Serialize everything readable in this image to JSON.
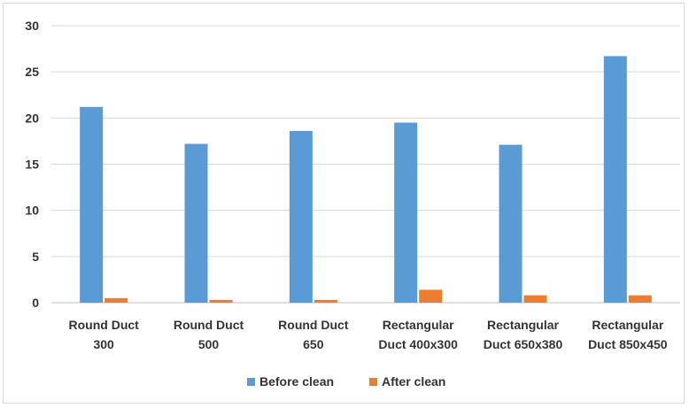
{
  "chart_data": {
    "type": "bar",
    "title": "",
    "xlabel": "",
    "ylabel": "",
    "ylim": [
      0,
      30
    ],
    "yticks": [
      0,
      5,
      10,
      15,
      20,
      25,
      30
    ],
    "categories": [
      [
        "Round Duct",
        "300"
      ],
      [
        "Round Duct",
        "500"
      ],
      [
        "Round Duct",
        "650"
      ],
      [
        "Rectangular",
        "Duct 400x300"
      ],
      [
        "Rectangular",
        "Duct 650x380"
      ],
      [
        "Rectangular",
        "Duct 850x450"
      ]
    ],
    "series": [
      {
        "name": "Before clean",
        "color": "#5b9bd5",
        "values": [
          21.2,
          17.2,
          18.6,
          19.5,
          17.1,
          26.7
        ]
      },
      {
        "name": "After clean",
        "color": "#ed7d31",
        "values": [
          0.5,
          0.3,
          0.3,
          1.4,
          0.8,
          0.8
        ]
      }
    ],
    "grid": true,
    "legend": "bottom"
  }
}
